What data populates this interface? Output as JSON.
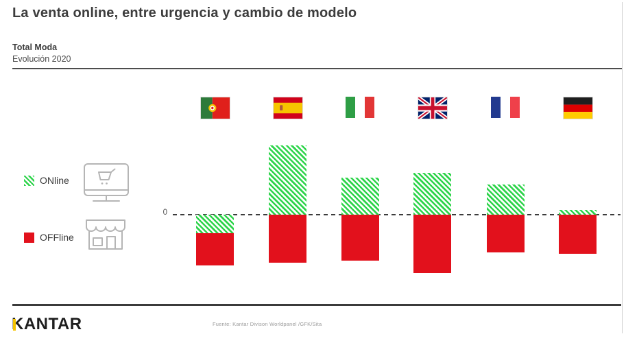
{
  "slide": {
    "title": "La venta online, entre urgencia y cambio de modelo",
    "subtitle_bold": "Total Moda",
    "subtitle": "Evolución 2020"
  },
  "legend": {
    "online_label": "ONline",
    "offline_label": "OFFline"
  },
  "axis": {
    "zero_label": "0"
  },
  "footer": {
    "brand": "KANTAR",
    "source": "Fuente: Kantar Divison Worldpanel /GFK/Sita"
  },
  "colors": {
    "online_green": "#2ed44b",
    "offline_red": "#e2111c",
    "kantar_yellow": "#f5c400"
  },
  "chart_data": {
    "type": "bar",
    "stacked": true,
    "title": "Total Moda — Evolución 2020",
    "categories": [
      "Portugal",
      "España",
      "Italia",
      "Reino Unido",
      "Francia",
      "Alemania"
    ],
    "series": [
      {
        "name": "ONline",
        "values": [
          -27,
          101,
          54,
          61,
          44,
          7
        ]
      },
      {
        "name": "OFFline",
        "values": [
          -47,
          -70,
          -67,
          -85,
          -55,
          -57
        ]
      }
    ],
    "baseline": 0,
    "units": "relative units (axis unlabeled; values estimated from bar heights in px)",
    "xlabel": "",
    "ylabel": "",
    "grid": false,
    "legend_position": "left",
    "notes": "Green hatched = online evolution, solid red = offline evolution; Portugal online is negative (drawn below zero line); only the 0 gridline is labeled"
  }
}
